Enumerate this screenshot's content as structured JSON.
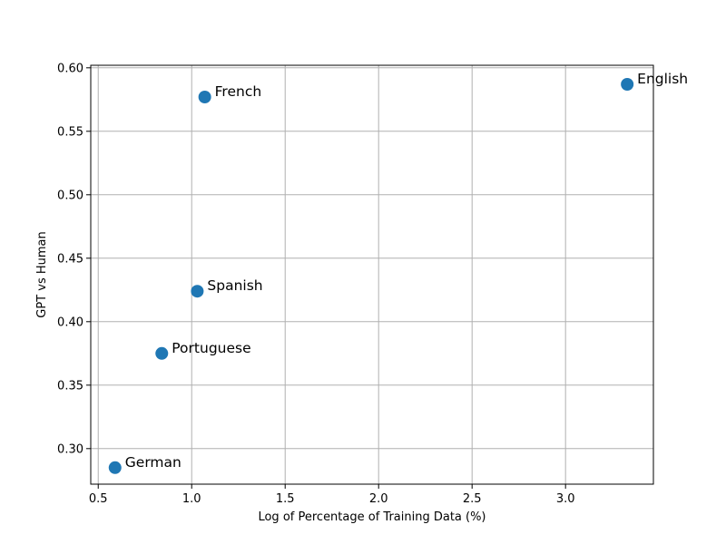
{
  "chart_data": {
    "type": "scatter",
    "title": "",
    "xlabel": "Log of Percentage of Training Data (%)",
    "ylabel": "GPT vs Human",
    "xlim": [
      0.46,
      3.47
    ],
    "ylim": [
      0.272,
      0.602
    ],
    "xticks": [
      0.5,
      1.0,
      1.5,
      2.0,
      2.5,
      3.0
    ],
    "xtick_labels": [
      "0.5",
      "1.0",
      "1.5",
      "2.0",
      "2.5",
      "3.0"
    ],
    "yticks": [
      0.3,
      0.35,
      0.4,
      0.45,
      0.5,
      0.55,
      0.6
    ],
    "ytick_labels": [
      "0.30",
      "0.35",
      "0.40",
      "0.45",
      "0.50",
      "0.55",
      "0.60"
    ],
    "grid": true,
    "marker_color": "#1f77b4",
    "points": [
      {
        "label": "English",
        "x": 3.33,
        "y": 0.587
      },
      {
        "label": "French",
        "x": 1.07,
        "y": 0.577
      },
      {
        "label": "Spanish",
        "x": 1.03,
        "y": 0.424
      },
      {
        "label": "Portuguese",
        "x": 0.84,
        "y": 0.375
      },
      {
        "label": "German",
        "x": 0.59,
        "y": 0.285
      }
    ]
  }
}
